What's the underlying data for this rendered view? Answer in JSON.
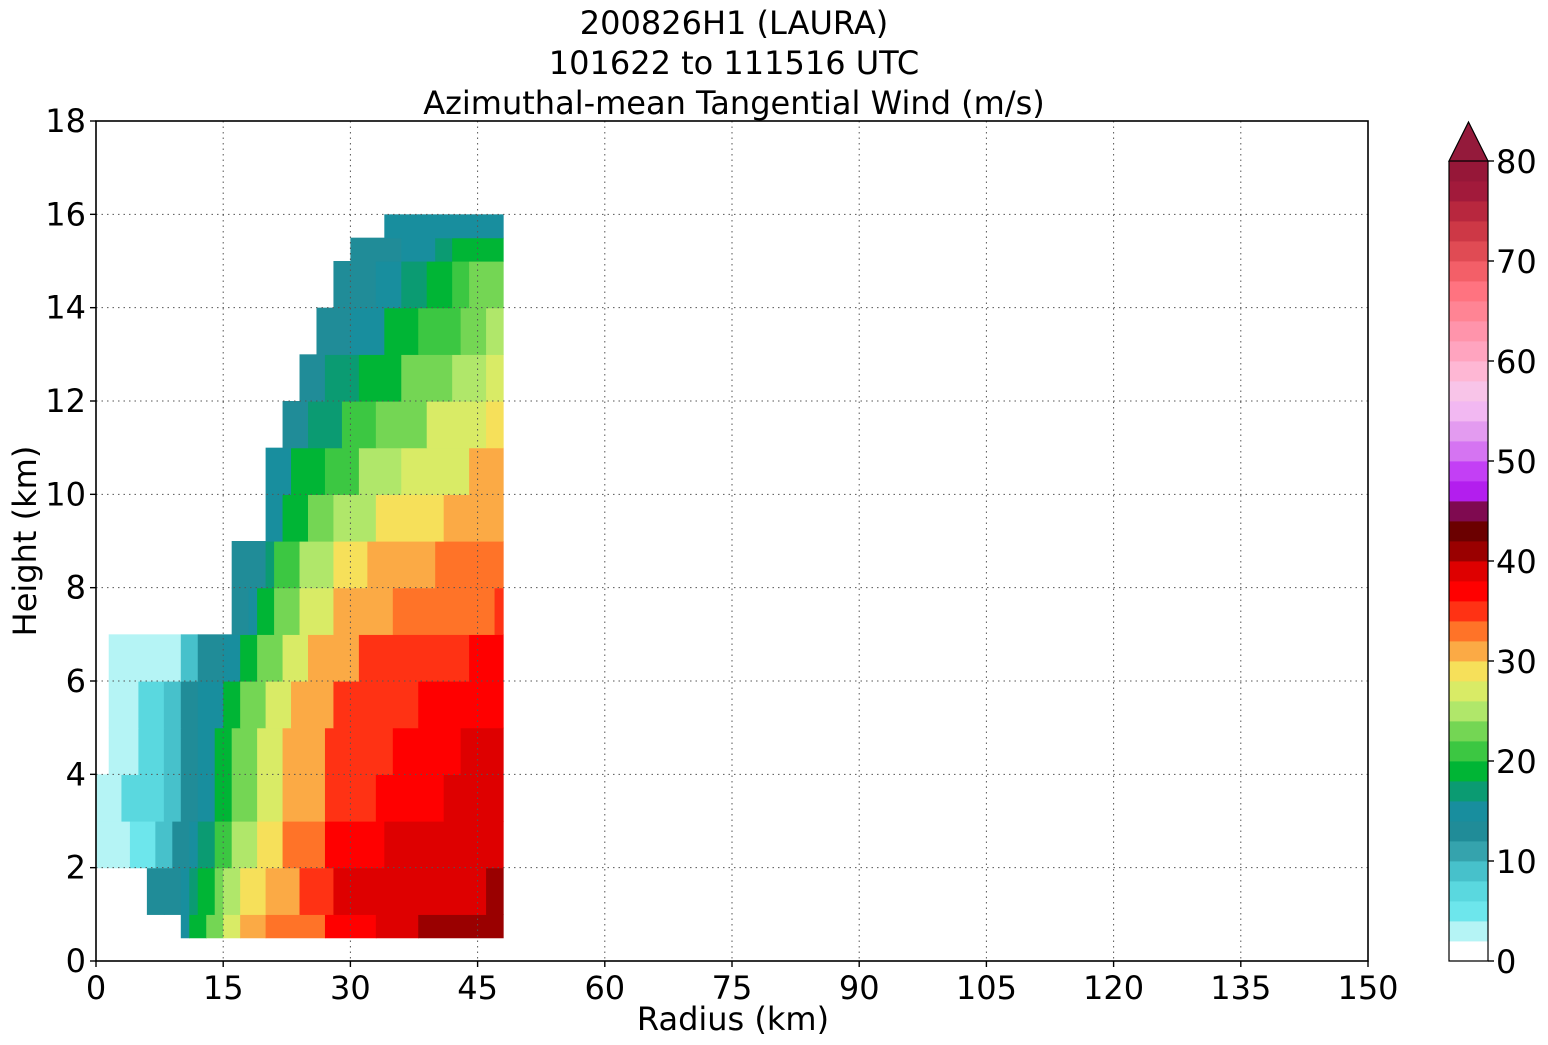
{
  "chart_data": {
    "type": "contourf",
    "title_lines": [
      "200826H1 (LAURA)",
      "101622 to 111516 UTC",
      "Azimuthal-mean Tangential Wind (m/s)"
    ],
    "xlabel": "Radius (km)",
    "ylabel": "Height (km)",
    "xlim": [
      0,
      150
    ],
    "ylim": [
      0,
      18
    ],
    "xticks": [
      0,
      15,
      30,
      45,
      60,
      75,
      90,
      105,
      120,
      135,
      150
    ],
    "yticks": [
      0,
      2,
      4,
      6,
      8,
      10,
      12,
      14,
      16,
      18
    ],
    "grid": true,
    "colorbar": {
      "min": 0,
      "max": 80,
      "step": 2,
      "extend": "max",
      "ticks": [
        0,
        10,
        20,
        30,
        40,
        50,
        60,
        70,
        80
      ],
      "colors": [
        "#ffffff",
        "#b5f4f5",
        "#6de6ec",
        "#5ad8df",
        "#47c1cb",
        "#35a3ad",
        "#208c98",
        "#188e9e",
        "#0b9b72",
        "#00b535",
        "#3cc742",
        "#74d654",
        "#b0e76a",
        "#d9eb66",
        "#f6e05a",
        "#fbaa45",
        "#ff7328",
        "#ff3214",
        "#ff0000",
        "#de0000",
        "#9a0000",
        "#6b0000",
        "#7f0a50",
        "#b31eee",
        "#c33ff5",
        "#d574f2",
        "#e39bf0",
        "#f2b8f2",
        "#f8c4e8",
        "#feb7d4",
        "#ffa4bf",
        "#ff94ab",
        "#ff8494",
        "#ff7380",
        "#f35f68",
        "#e04b54",
        "#cd3846",
        "#b8273e",
        "#a21a3b",
        "#961738"
      ],
      "extend_color": "#941a3b"
    },
    "profiles": [
      {
        "z": 0.5,
        "r_in": 10,
        "speeds": [
          [
            10,
            15
          ],
          [
            11,
            18
          ],
          [
            13,
            22
          ],
          [
            15,
            27
          ],
          [
            17,
            30
          ],
          [
            20,
            33
          ],
          [
            27,
            36
          ],
          [
            33,
            39
          ],
          [
            38,
            40
          ]
        ]
      },
      {
        "z": 1.0,
        "r_in": 6,
        "speeds": [
          [
            6,
            12
          ],
          [
            8,
            13
          ],
          [
            10,
            14
          ],
          [
            11,
            17
          ],
          [
            12,
            19
          ],
          [
            14,
            22
          ],
          [
            15,
            25
          ],
          [
            17,
            28
          ],
          [
            20,
            31
          ],
          [
            24,
            35
          ],
          [
            28,
            38
          ],
          [
            38,
            39
          ],
          [
            46,
            40
          ]
        ]
      },
      {
        "z": 2.0,
        "r_in": 0,
        "speeds": [
          [
            0,
            2
          ],
          [
            4,
            5
          ],
          [
            7,
            9
          ],
          [
            9,
            12
          ],
          [
            11,
            14
          ],
          [
            12,
            17
          ],
          [
            14,
            20
          ],
          [
            16,
            24
          ],
          [
            19,
            28
          ],
          [
            22,
            32
          ],
          [
            27,
            36
          ],
          [
            34,
            38
          ],
          [
            44,
            39
          ],
          [
            48,
            41
          ]
        ]
      },
      {
        "z": 3.0,
        "r_in": 0,
        "speeds": [
          [
            0,
            3
          ],
          [
            3,
            6
          ],
          [
            8,
            9
          ],
          [
            10,
            12
          ],
          [
            12,
            14
          ],
          [
            14,
            18
          ],
          [
            16,
            22
          ],
          [
            19,
            26
          ],
          [
            22,
            30
          ],
          [
            27,
            34
          ],
          [
            33,
            36
          ],
          [
            41,
            38
          ],
          [
            48,
            40
          ]
        ]
      },
      {
        "z": 4.0,
        "r_in": 1.5,
        "speeds": [
          [
            1.5,
            3
          ],
          [
            5,
            6
          ],
          [
            8,
            9
          ],
          [
            10,
            12
          ],
          [
            12,
            15
          ],
          [
            14,
            18
          ],
          [
            16,
            22
          ],
          [
            19,
            26
          ],
          [
            22,
            30
          ],
          [
            27,
            34
          ],
          [
            35,
            36
          ],
          [
            43,
            38
          ],
          [
            48,
            39
          ]
        ]
      },
      {
        "z": 5.0,
        "r_in": 1.5,
        "speeds": [
          [
            1.5,
            3
          ],
          [
            5,
            6
          ],
          [
            8,
            9
          ],
          [
            10,
            12
          ],
          [
            12,
            15
          ],
          [
            15,
            18
          ],
          [
            17,
            22
          ],
          [
            20,
            26
          ],
          [
            23,
            30
          ],
          [
            28,
            34
          ],
          [
            38,
            36
          ],
          [
            48,
            38
          ]
        ]
      },
      {
        "z": 6.0,
        "r_in": 1.5,
        "speeds": [
          [
            1.5,
            3
          ],
          [
            10,
            9
          ],
          [
            12,
            12
          ],
          [
            15,
            15
          ],
          [
            17,
            18
          ],
          [
            19,
            22
          ],
          [
            22,
            26
          ],
          [
            25,
            30
          ],
          [
            31,
            34
          ],
          [
            44,
            36
          ],
          [
            48,
            37
          ]
        ]
      },
      {
        "z": 7.0,
        "r_in": 16,
        "speeds": [
          [
            16,
            12
          ],
          [
            18,
            15
          ],
          [
            19,
            18
          ],
          [
            21,
            22
          ],
          [
            24,
            26
          ],
          [
            28,
            30
          ],
          [
            35,
            33
          ],
          [
            47,
            35
          ],
          [
            48,
            36
          ]
        ]
      },
      {
        "z": 8.0,
        "r_in": 16,
        "speeds": [
          [
            16,
            13
          ],
          [
            20,
            17
          ],
          [
            21,
            20
          ],
          [
            24,
            24
          ],
          [
            28,
            28
          ],
          [
            32,
            30
          ],
          [
            40,
            33
          ],
          [
            48,
            34
          ]
        ]
      },
      {
        "z": 9.0,
        "r_in": 20,
        "speeds": [
          [
            20,
            14
          ],
          [
            22,
            18
          ],
          [
            25,
            22
          ],
          [
            28,
            25
          ],
          [
            33,
            28
          ],
          [
            41,
            31
          ],
          [
            48,
            33
          ]
        ]
      },
      {
        "z": 10.0,
        "r_in": 20,
        "speeds": [
          [
            20,
            14
          ],
          [
            23,
            18
          ],
          [
            27,
            21
          ],
          [
            31,
            24
          ],
          [
            36,
            27
          ],
          [
            44,
            30
          ],
          [
            48,
            32
          ]
        ]
      },
      {
        "z": 11.0,
        "r_in": 22,
        "speeds": [
          [
            22,
            13
          ],
          [
            25,
            17
          ],
          [
            29,
            20
          ],
          [
            33,
            23
          ],
          [
            39,
            26
          ],
          [
            46,
            28
          ]
        ]
      },
      {
        "z": 12.0,
        "r_in": 24,
        "speeds": [
          [
            24,
            13
          ],
          [
            27,
            16
          ],
          [
            31,
            19
          ],
          [
            36,
            22
          ],
          [
            42,
            25
          ],
          [
            46,
            27
          ]
        ]
      },
      {
        "z": 13.0,
        "r_in": 26,
        "speeds": [
          [
            26,
            13
          ],
          [
            30,
            15
          ],
          [
            34,
            18
          ],
          [
            38,
            21
          ],
          [
            43,
            23
          ],
          [
            46,
            25
          ]
        ]
      },
      {
        "z": 14.0,
        "r_in": 28,
        "speeds": [
          [
            28,
            13
          ],
          [
            33,
            15
          ],
          [
            36,
            17
          ],
          [
            39,
            19
          ],
          [
            42,
            21
          ],
          [
            44,
            22
          ]
        ]
      },
      {
        "z": 15.0,
        "r_in": 30,
        "speeds": [
          [
            30,
            13
          ],
          [
            36,
            15
          ],
          [
            40,
            17
          ],
          [
            42,
            18
          ]
        ]
      },
      {
        "z": 15.5,
        "r_in": 34,
        "speeds": [
          [
            34,
            14
          ],
          [
            38,
            15
          ]
        ]
      }
    ]
  }
}
